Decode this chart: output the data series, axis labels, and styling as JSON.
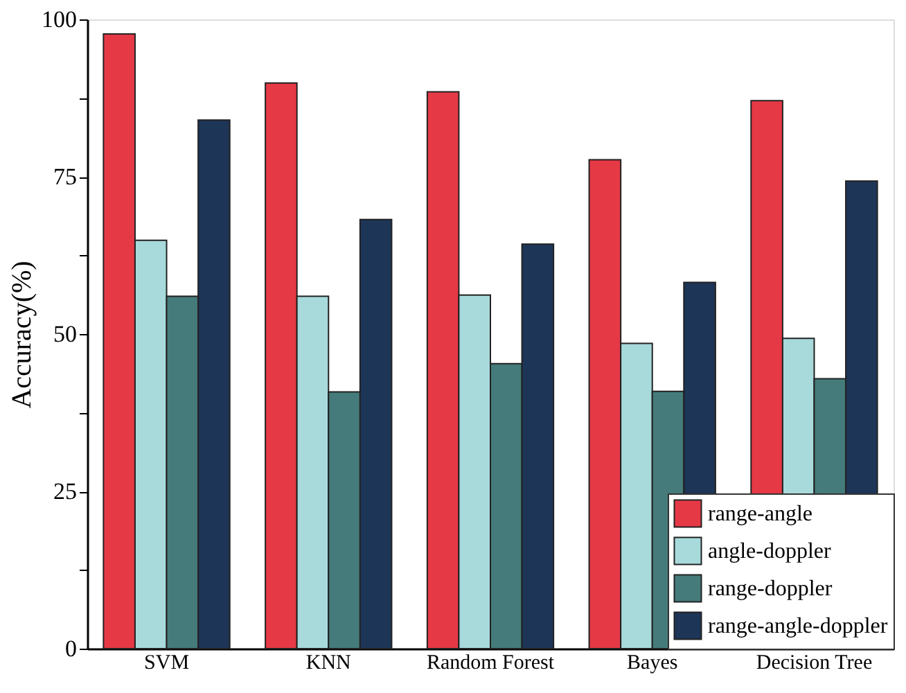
{
  "chart_data": {
    "type": "bar",
    "ylabel": "Accuracy(%)",
    "categories": [
      "SVM",
      "KNN",
      "Random Forest",
      "Bayes",
      "Decision Tree"
    ],
    "series": [
      {
        "name": "range-angle",
        "color": "#e63946",
        "values": [
          97.7,
          89.9,
          88.5,
          77.7,
          87.1
        ]
      },
      {
        "name": "angle-doppler",
        "color": "#a8dadc",
        "values": [
          64.9,
          56.0,
          56.2,
          48.5,
          49.3
        ]
      },
      {
        "name": "range-doppler",
        "color": "#457b7b",
        "values": [
          56.0,
          40.8,
          45.3,
          40.9,
          42.9
        ]
      },
      {
        "name": "range-angle-doppler",
        "color": "#1d3557",
        "values": [
          84.0,
          68.2,
          64.3,
          58.2,
          74.3
        ]
      }
    ],
    "ylim": [
      0,
      100
    ],
    "yticks": [
      0,
      {
        "value": 12.5,
        "label": null
      },
      25,
      {
        "value": 37.5,
        "label": null
      },
      50,
      {
        "value": 62.5,
        "label": null
      },
      75,
      {
        "value": 87.5,
        "label": null
      },
      100
    ],
    "grid": false,
    "legend": "bottom right"
  }
}
